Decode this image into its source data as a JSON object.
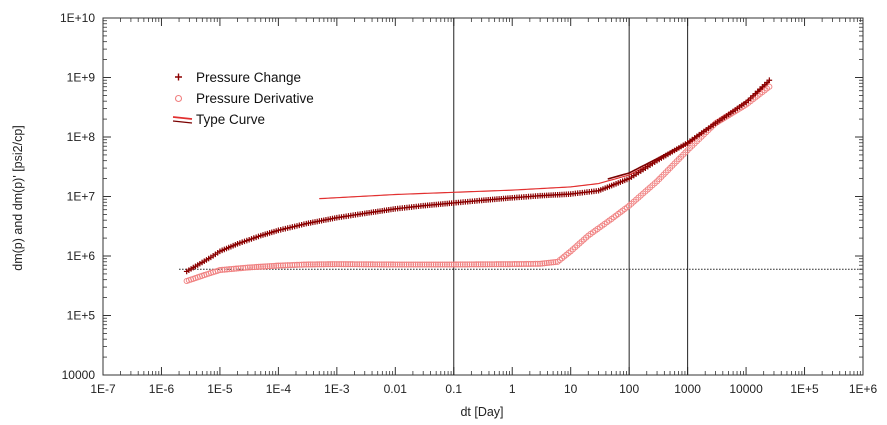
{
  "chart_data": {
    "type": "scatter",
    "xscale": "log",
    "yscale": "log",
    "xlim": [
      1e-07,
      1000000.0
    ],
    "ylim": [
      10000,
      10000000000.0
    ],
    "xlabel": "dt [Day]",
    "ylabel": "dm(p) and dm(p)'  [psi2/cp]",
    "x_tick_labels": [
      "1E-7",
      "1E-6",
      "1E-5",
      "1E-4",
      "1E-3",
      "0.01",
      "0.1",
      "1",
      "10",
      "100",
      "1000",
      "10000",
      "1E+5",
      "1E+6"
    ],
    "y_tick_labels": [
      "10000",
      "1E+5",
      "1E+6",
      "1E+7",
      "1E+8",
      "1E+9",
      "1E+10"
    ],
    "grid": false,
    "vertical_lines_x": [
      0.1,
      100,
      1000
    ],
    "horizontal_reference_y": 600000,
    "legend_position": "top-left",
    "legend": [
      "Pressure Change",
      "Pressure Derivative",
      "Type Curve"
    ],
    "series": [
      {
        "name": "Pressure Change",
        "marker": "plus",
        "color": "#8b0000",
        "points": [
          [
            2.7e-06,
            550000
          ],
          [
            7e-06,
            950000
          ],
          [
            1e-05,
            1200000
          ],
          [
            2e-05,
            1600000
          ],
          [
            5e-05,
            2200000
          ],
          [
            0.0001,
            2700000
          ],
          [
            0.0003,
            3500000
          ],
          [
            0.001,
            4400000
          ],
          [
            0.003,
            5200000
          ],
          [
            0.01,
            6200000
          ],
          [
            0.03,
            7000000
          ],
          [
            0.1,
            7800000
          ],
          [
            0.3,
            8600000
          ],
          [
            1,
            9500000
          ],
          [
            3,
            10300000
          ],
          [
            10,
            11000000
          ],
          [
            30,
            12500000
          ],
          [
            100,
            20000000
          ],
          [
            300,
            40000000
          ],
          [
            1000,
            80000000
          ],
          [
            3000,
            170000000
          ],
          [
            10000,
            380000000
          ],
          [
            25000,
            900000000
          ]
        ]
      },
      {
        "name": "Pressure Derivative",
        "marker": "circle",
        "color": "#f08080",
        "points": [
          [
            2.7e-06,
            380000
          ],
          [
            7e-06,
            520000
          ],
          [
            1e-05,
            580000
          ],
          [
            3e-05,
            640000
          ],
          [
            0.0001,
            690000
          ],
          [
            0.0003,
            720000
          ],
          [
            0.001,
            730000
          ],
          [
            0.01,
            720000
          ],
          [
            0.1,
            720000
          ],
          [
            1,
            730000
          ],
          [
            3,
            740000
          ],
          [
            6,
            800000
          ],
          [
            10,
            1200000
          ],
          [
            20,
            2200000
          ],
          [
            50,
            4200000
          ],
          [
            100,
            7000000
          ],
          [
            300,
            18000000
          ],
          [
            1000,
            60000000
          ],
          [
            3000,
            170000000
          ],
          [
            10000,
            350000000
          ],
          [
            25000,
            700000000
          ]
        ]
      },
      {
        "name": "Type Curve",
        "marker": "line",
        "color": "#e23030",
        "dark_color": "#7a0000",
        "points": [
          [
            0.0005,
            9200000
          ],
          [
            0.01,
            10800000
          ],
          [
            1,
            12800000
          ],
          [
            10,
            14500000
          ],
          [
            30,
            16500000
          ],
          [
            100,
            23000000
          ],
          [
            300,
            40000000
          ],
          [
            1000,
            75000000
          ],
          [
            3000,
            165000000
          ],
          [
            10000,
            370000000
          ],
          [
            25000,
            800000000
          ]
        ]
      }
    ]
  }
}
